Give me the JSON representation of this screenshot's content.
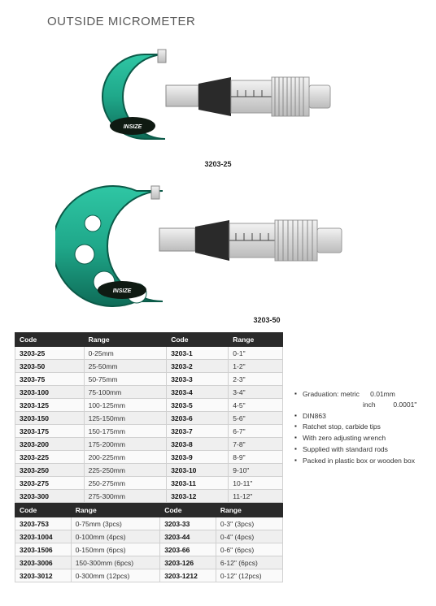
{
  "title": "OUTSIDE MICROMETER",
  "product1": {
    "caption": "3203-25"
  },
  "product2": {
    "caption": "3203-50"
  },
  "colors": {
    "frame": "#1fa88a",
    "frame_dark": "#0e6b57",
    "metal_light": "#e6e6e6",
    "metal_mid": "#b8b8b8",
    "metal_dark": "#8a8a8a",
    "label_badge": "#0f1a12"
  },
  "table1": {
    "headers": [
      "Code",
      "Range",
      "Code",
      "Range"
    ],
    "rows": [
      [
        "3203-25",
        "0-25mm",
        "3203-1",
        "0-1\""
      ],
      [
        "3203-50",
        "25-50mm",
        "3203-2",
        "1-2\""
      ],
      [
        "3203-75",
        "50-75mm",
        "3203-3",
        "2-3\""
      ],
      [
        "3203-100",
        "75-100mm",
        "3203-4",
        "3-4\""
      ],
      [
        "3203-125",
        "100-125mm",
        "3203-5",
        "4-5\""
      ],
      [
        "3203-150",
        "125-150mm",
        "3203-6",
        "5-6\""
      ],
      [
        "3203-175",
        "150-175mm",
        "3203-7",
        "6-7\""
      ],
      [
        "3203-200",
        "175-200mm",
        "3203-8",
        "7-8\""
      ],
      [
        "3203-225",
        "200-225mm",
        "3203-9",
        "8-9\""
      ],
      [
        "3203-250",
        "225-250mm",
        "3203-10",
        "9-10\""
      ],
      [
        "3203-275",
        "250-275mm",
        "3203-11",
        "10-11\""
      ],
      [
        "3203-300",
        "275-300mm",
        "3203-12",
        "11-12\""
      ]
    ]
  },
  "table2": {
    "headers": [
      "Code",
      "Range",
      "Code",
      "Range"
    ],
    "rows": [
      [
        "3203-753",
        "0-75mm (3pcs)",
        "3203-33",
        "0-3\" (3pcs)"
      ],
      [
        "3203-1004",
        "0-100mm (4pcs)",
        "3203-44",
        "0-4\" (4pcs)"
      ],
      [
        "3203-1506",
        "0-150mm (6pcs)",
        "3203-66",
        "0-6\" (6pcs)"
      ],
      [
        "3203-3006",
        "150-300mm (6pcs)",
        "3203-126",
        "6-12\" (6pcs)"
      ],
      [
        "3203-3012",
        "0-300mm (12pcs)",
        "3203-1212",
        "0-12\" (12pcs)"
      ]
    ]
  },
  "features": {
    "grad_line1": "Graduation: metric   0.01mm",
    "grad_line2": "inch    0.0001\"",
    "items": [
      "DIN863",
      "Ratchet stop, carbide tips",
      "With zero adjusting wrench",
      "Supplied with standard rods",
      "Packed in plastic box or wooden box"
    ]
  }
}
